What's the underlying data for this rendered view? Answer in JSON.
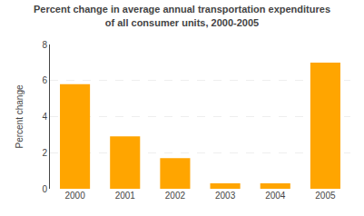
{
  "chart_data": {
    "type": "bar",
    "title": "Percent change in average annual transportation expenditures\nof all consumer units, 2000-2005",
    "categories": [
      "2000",
      "2001",
      "2002",
      "2003",
      "2004",
      "2005"
    ],
    "values": [
      5.8,
      2.9,
      1.7,
      0.3,
      0.3,
      7.0
    ],
    "color": "#FFA500",
    "ylabel": "Percent change",
    "ylim": [
      0,
      8
    ],
    "yticks": [
      0,
      2,
      4,
      6,
      8
    ],
    "grid": true
  }
}
